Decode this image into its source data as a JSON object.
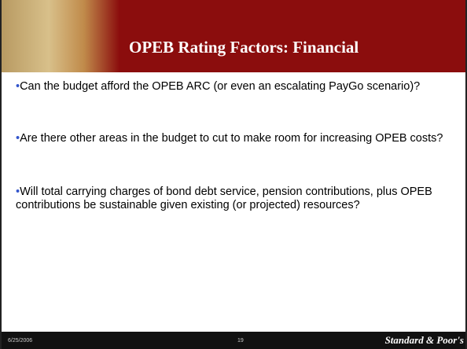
{
  "header": {
    "title": "OPEB Rating Factors: Financial"
  },
  "bullets": [
    "Can the budget afford the OPEB ARC (or even an escalating PayGo scenario)?",
    "Are there other areas in the budget  to cut to make room for increasing OPEB costs?",
    "Will total carrying charges of bond debt service, pension contributions, plus OPEB contributions be sustainable given existing (or projected) resources?"
  ],
  "footer": {
    "date": "6/25/2006",
    "page": "19",
    "brand": "Standard & Poor's"
  }
}
